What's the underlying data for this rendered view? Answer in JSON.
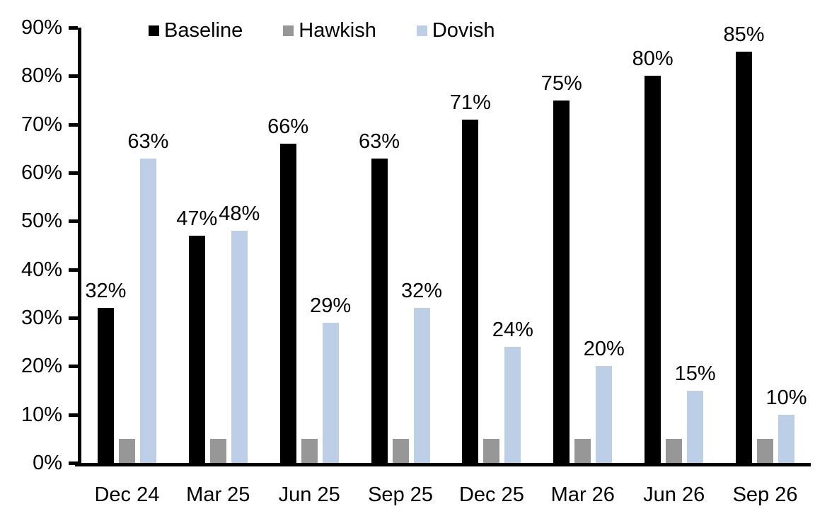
{
  "chart_data": {
    "type": "bar",
    "title": "",
    "xlabel": "",
    "ylabel": "",
    "categories": [
      "Dec 24",
      "Mar 25",
      "Jun 25",
      "Sep 25",
      "Dec 25",
      "Mar 26",
      "Jun 26",
      "Sep 26"
    ],
    "series": [
      {
        "name": "Baseline",
        "color": "#000000",
        "values": [
          32,
          47,
          66,
          63,
          71,
          75,
          80,
          85
        ],
        "show_labels": true
      },
      {
        "name": "Hawkish",
        "color": "#979797",
        "values": [
          5,
          5,
          5,
          5,
          5,
          5,
          5,
          5
        ],
        "show_labels": false
      },
      {
        "name": "Dovish",
        "color": "#BCCFE6",
        "values": [
          63,
          48,
          29,
          32,
          24,
          20,
          15,
          10
        ],
        "show_labels": true
      }
    ],
    "ylim": [
      0,
      90
    ],
    "ytick_step": 10,
    "ytick_labels": [
      "0%",
      "10%",
      "20%",
      "30%",
      "40%",
      "50%",
      "60%",
      "70%",
      "80%",
      "90%"
    ],
    "value_suffix": "%",
    "grid": false,
    "legend_position": "top",
    "axis_color": "#000000"
  }
}
